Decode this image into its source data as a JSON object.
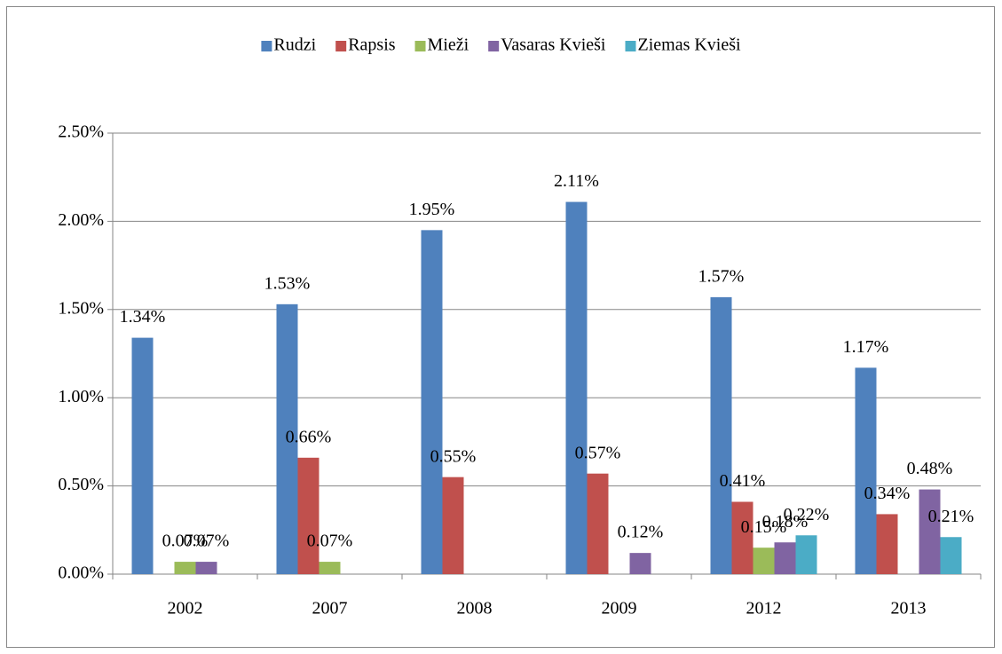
{
  "chart_data": {
    "type": "bar",
    "categories": [
      "2002",
      "2007",
      "2008",
      "2009",
      "2012",
      "2013"
    ],
    "series": [
      {
        "name": "Rudzi",
        "color": "#4f81bd",
        "values": [
          1.34,
          1.53,
          1.95,
          2.11,
          1.57,
          1.17
        ],
        "value_labels": [
          "1.34%",
          "1.53%",
          "1.95%",
          "2.11%",
          "1.57%",
          "1.17%"
        ]
      },
      {
        "name": "Rapsis",
        "color": "#c0504d",
        "values": [
          null,
          0.66,
          0.55,
          0.57,
          0.41,
          0.34
        ],
        "value_labels": [
          null,
          "0.66%",
          "0.55%",
          "0.57%",
          "0.41%",
          "0.34%"
        ]
      },
      {
        "name": "Mieži",
        "color": "#9bbb59",
        "values": [
          0.07,
          0.07,
          null,
          null,
          0.15,
          null
        ],
        "value_labels": [
          "0.07%",
          "0.07%",
          null,
          null,
          "0.15%",
          null
        ]
      },
      {
        "name": "Vasaras Kvieši",
        "color": "#8064a2",
        "values": [
          0.07,
          null,
          null,
          0.12,
          0.18,
          0.48
        ],
        "value_labels": [
          "0.07%",
          null,
          null,
          "0.12%",
          "0.18%",
          "0.48%"
        ]
      },
      {
        "name": "Ziemas Kvieši",
        "color": "#4bacc6",
        "values": [
          null,
          null,
          null,
          null,
          0.22,
          0.21
        ],
        "value_labels": [
          null,
          null,
          null,
          null,
          "0.22%",
          "0.21%"
        ]
      }
    ],
    "ylim": [
      0,
      2.5
    ],
    "yticks": [
      {
        "value": 0,
        "label": "0.00%"
      },
      {
        "value": 0.5,
        "label": "0.50%"
      },
      {
        "value": 1,
        "label": "1.00%"
      },
      {
        "value": 1.5,
        "label": "1.50%"
      },
      {
        "value": 2,
        "label": "2.00%"
      },
      {
        "value": 2.5,
        "label": "2.50%"
      }
    ],
    "grid": true,
    "legend": "top"
  }
}
